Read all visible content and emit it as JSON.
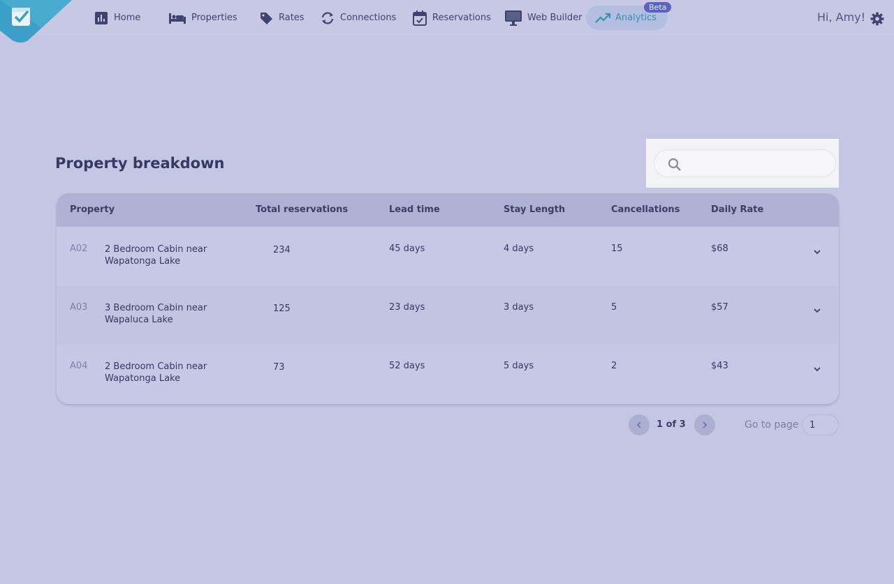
{
  "nav": {
    "items": [
      {
        "label": "Home",
        "icon": "bar-chart-icon"
      },
      {
        "label": "Properties",
        "icon": "bed-icon"
      },
      {
        "label": "Rates",
        "icon": "tag-icon"
      },
      {
        "label": "Connections",
        "icon": "sync-icon"
      },
      {
        "label": "Reservations",
        "icon": "calendar-check-icon"
      },
      {
        "label": "Web Builder",
        "icon": "monitor-icon"
      },
      {
        "label": "Analytics",
        "icon": "trending-up-icon"
      }
    ],
    "beta_badge": "Beta",
    "greeting": "Hi, Amy!"
  },
  "page": {
    "title": "Property breakdown",
    "search_placeholder": ""
  },
  "table": {
    "headers": [
      "Property",
      "Total reservations",
      "Lead time",
      "Stay Length",
      "Cancellations",
      "Daily Rate"
    ],
    "rows": [
      {
        "code": "A02",
        "name": "2 Bedroom Cabin near Wapatonga Lake",
        "total": "234",
        "lead": "45 days",
        "stay": "4 days",
        "cancel": "15",
        "rate": "$68"
      },
      {
        "code": "A03",
        "name": "3 Bedroom Cabin near Wapaluca Lake",
        "total": "125",
        "lead": "23 days",
        "stay": "3 days",
        "cancel": "5",
        "rate": "$57"
      },
      {
        "code": "A04",
        "name": "2 Bedroom Cabin near Wapatonga Lake",
        "total": "73",
        "lead": "52 days",
        "stay": "5 days",
        "cancel": "2",
        "rate": "$43"
      }
    ]
  },
  "pagination": {
    "page_text": "1 of 3",
    "goto_label": "Go to page",
    "goto_value": "1"
  },
  "colors": {
    "background": "#c4c6e3",
    "accent": "#3a8fb3",
    "badge": "#5a64c0"
  }
}
